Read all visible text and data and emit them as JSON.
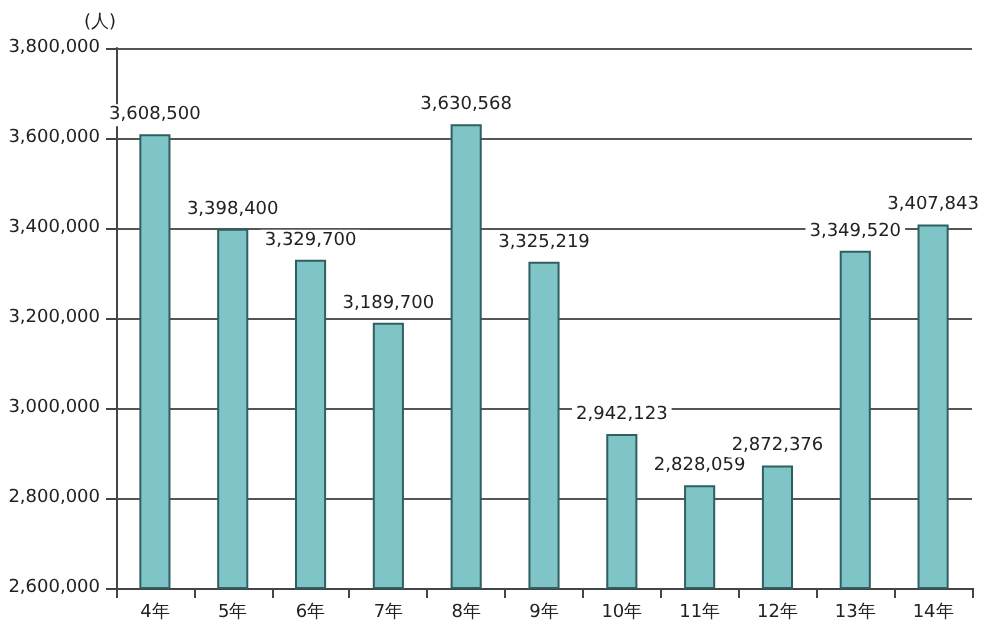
{
  "chart_data": {
    "type": "bar",
    "ylabel": "(人)",
    "categories": [
      "4年",
      "5年",
      "6年",
      "7年",
      "8年",
      "9年",
      "10年",
      "11年",
      "12年",
      "13年",
      "14年"
    ],
    "values": [
      3608500,
      3398400,
      3329700,
      3189700,
      3630568,
      3325219,
      2942123,
      2828059,
      2872376,
      3349520,
      3407843
    ],
    "value_labels": [
      "3,608,500",
      "3,398,400",
      "3,329,700",
      "3,189,700",
      "3,630,568",
      "3,325,219",
      "2,942,123",
      "2,828,059",
      "2,872,376",
      "3,349,520",
      "3,407,843"
    ],
    "color": "#7fc4c6",
    "ylim": [
      2600000,
      3800000
    ],
    "yticks": [
      {
        "value": 2600000,
        "label": "2,600,000"
      },
      {
        "value": 2800000,
        "label": "2,800,000"
      },
      {
        "value": 3000000,
        "label": "3,000,000"
      },
      {
        "value": 3200000,
        "label": "3,200,000"
      },
      {
        "value": 3400000,
        "label": "3,400,000"
      },
      {
        "value": 3600000,
        "label": "3,600,000"
      },
      {
        "value": 3800000,
        "label": "3,800,000"
      }
    ],
    "grid": "y"
  }
}
